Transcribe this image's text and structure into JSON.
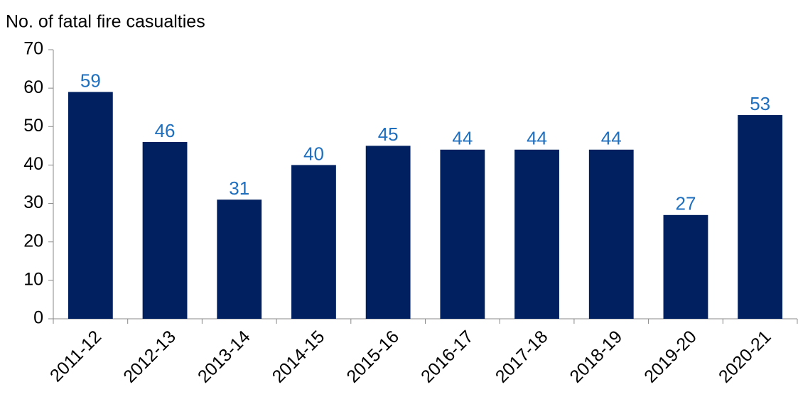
{
  "chart_data": {
    "type": "bar",
    "y_label": "No. of fatal fire casualties",
    "categories": [
      "2011-12",
      "2012-13",
      "2013-14",
      "2014-15",
      "2015-16",
      "2016-17",
      "2017-18",
      "2018-19",
      "2019-20",
      "2020-21"
    ],
    "values": [
      59,
      46,
      31,
      40,
      45,
      44,
      44,
      44,
      27,
      53
    ],
    "color": "#002060",
    "label_color": "#1f6fbf",
    "ylim": [
      0,
      70
    ],
    "yticks": [
      0,
      10,
      20,
      30,
      40,
      50,
      60,
      70
    ],
    "grid": false
  }
}
